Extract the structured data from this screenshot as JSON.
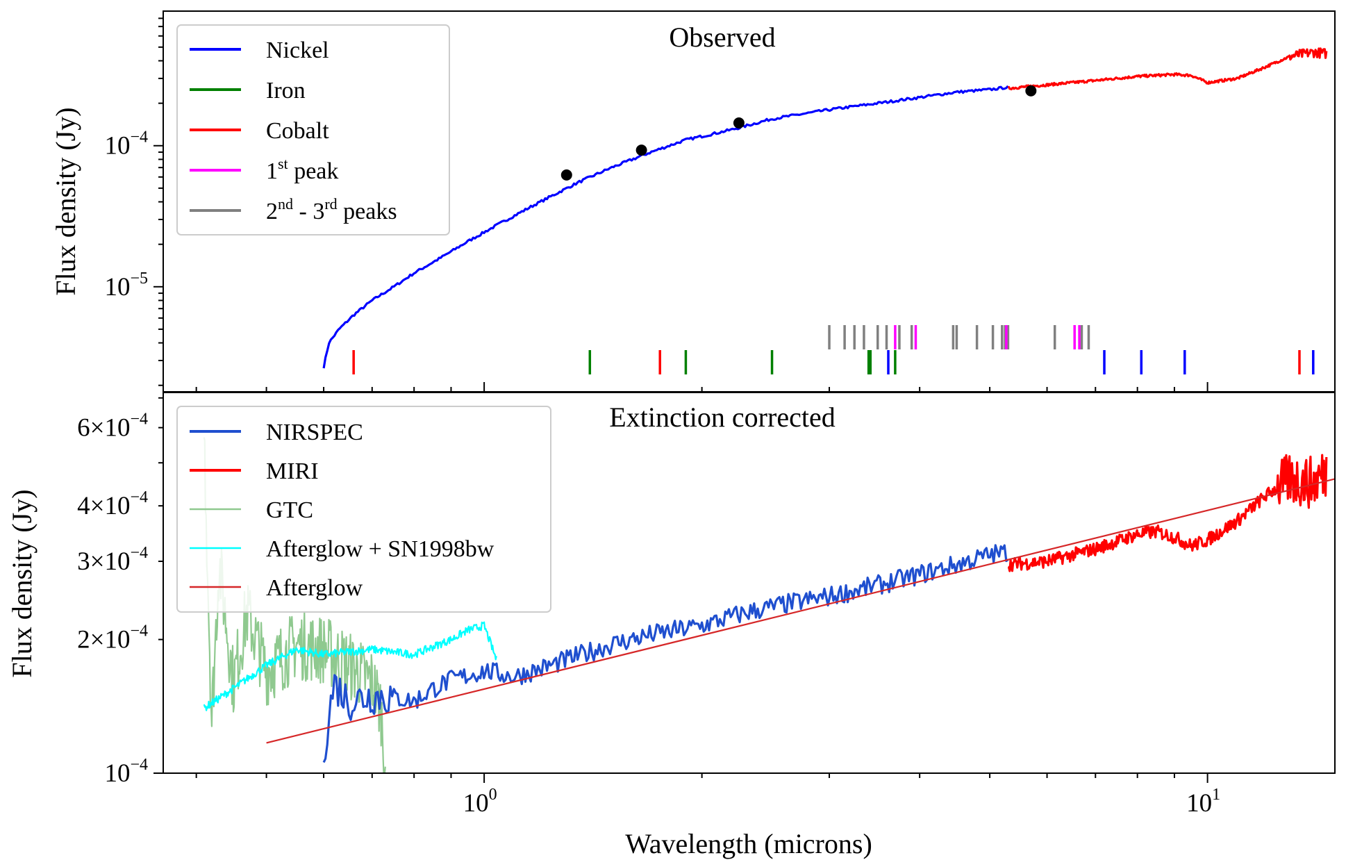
{
  "chart_data": [
    {
      "type": "line",
      "title": "Observed",
      "xlabel": "Wavelength (microns)",
      "ylabel": "Flux density (Jy)",
      "xscale": "log",
      "yscale": "log",
      "xlim": [
        0.36,
        15
      ],
      "ylim": [
        1.8e-06,
        0.0009
      ],
      "yticks": [
        {
          "mant": "10",
          "exp": "−5",
          "value": 1e-05
        },
        {
          "mant": "10",
          "exp": "−4",
          "value": 0.0001
        }
      ],
      "legend": {
        "placement": "upper-left",
        "entries": [
          {
            "label": "Nickel",
            "color": "#0000ff"
          },
          {
            "label": "Iron",
            "color": "#008000"
          },
          {
            "label": "Cobalt",
            "color": "#ff0000"
          },
          {
            "pre": "1",
            "sup": "st",
            "post": " peak",
            "color": "#ff00ff"
          },
          {
            "pre": "2",
            "sup": "nd",
            "mid": " - 3",
            "sup2": "rd",
            "post": " peaks",
            "color": "#808080"
          }
        ]
      },
      "series": [
        {
          "name": "Nickel",
          "color": "#0000ff",
          "x": [
            0.6,
            0.61,
            0.63,
            0.66,
            0.7,
            0.75,
            0.8,
            0.87,
            0.95,
            1.05,
            1.15,
            1.25,
            1.35,
            1.5,
            1.7,
            1.9,
            2.2,
            2.5,
            3.0,
            3.5,
            4.0,
            4.5,
            5.0,
            5.3
          ],
          "y": [
            2.7e-06,
            4e-06,
            5e-06,
            6.3e-06,
            8e-06,
            1e-05,
            1.25e-05,
            1.6e-05,
            2.1e-05,
            2.8e-05,
            3.6e-05,
            4.5e-05,
            5.5e-05,
            7e-05,
            9e-05,
            0.00011,
            0.00013,
            0.000155,
            0.00018,
            0.0002,
            0.00022,
            0.00024,
            0.00025,
            0.00026
          ]
        },
        {
          "name": "Cobalt",
          "color": "#ff0000",
          "x": [
            5.3,
            6.0,
            7.0,
            8.0,
            9.0,
            9.5,
            10.0,
            11.0,
            12.0,
            13.0,
            14.0,
            14.6
          ],
          "y": [
            0.000255,
            0.00027,
            0.00029,
            0.00031,
            0.00032,
            0.000315,
            0.00028,
            0.0003,
            0.00036,
            0.00043,
            0.00046,
            0.00045
          ]
        }
      ],
      "points": {
        "color": "#000000",
        "x": [
          1.3,
          1.65,
          2.25,
          5.7
        ],
        "y": [
          6.2e-05,
          9.3e-05,
          0.000145,
          0.000245
        ]
      },
      "line_markers": {
        "gray": [
          3.0,
          3.15,
          3.25,
          3.35,
          3.5,
          3.6,
          3.75,
          3.9,
          4.45,
          4.5,
          4.8,
          5.05,
          5.2,
          5.25,
          5.3,
          6.15,
          6.7,
          6.85
        ],
        "magenta": [
          3.7,
          3.95,
          5.27,
          6.55,
          6.65
        ],
        "red": [
          0.66,
          1.75,
          13.4
        ],
        "green": [
          1.4,
          1.9,
          2.5,
          3.4,
          3.42,
          3.7
        ],
        "blue": [
          3.62,
          7.2,
          8.1,
          9.3,
          14.0
        ]
      }
    },
    {
      "type": "line",
      "title": "Extinction corrected",
      "xlabel": "Wavelength (microns)",
      "ylabel": "Flux density (Jy)",
      "xscale": "log",
      "yscale": "log",
      "xlim": [
        0.36,
        15
      ],
      "ylim": [
        0.0001,
        0.00072
      ],
      "yticks": [
        {
          "mant": "10",
          "exp": "−4",
          "value": 0.0001
        },
        {
          "mant": "2×10",
          "exp": "−4",
          "value": 0.0002
        },
        {
          "mant": "3×10",
          "exp": "−4",
          "value": 0.0003
        },
        {
          "mant": "4×10",
          "exp": "−4",
          "value": 0.0004
        },
        {
          "mant": "6×10",
          "exp": "−4",
          "value": 0.0006
        }
      ],
      "xticks": [
        {
          "mant": "10",
          "exp": "0",
          "value": 1
        },
        {
          "mant": "10",
          "exp": "1",
          "value": 10
        }
      ],
      "legend": {
        "placement": "upper-left",
        "entries": [
          {
            "label": "NIRSPEC",
            "color": "#1f4fcf"
          },
          {
            "label": "MIRI",
            "color": "#ff0000"
          },
          {
            "label": "GTC",
            "color": "#8fc98f"
          },
          {
            "label": "Afterglow + SN1998bw",
            "color": "#00ffff"
          },
          {
            "label": "Afterglow",
            "color": "#d62728"
          }
        ]
      },
      "series": [
        {
          "name": "NIRSPEC",
          "color": "#1f4fcf",
          "x": [
            0.6,
            0.62,
            0.65,
            0.7,
            0.75,
            0.8,
            0.85,
            0.9,
            1.0,
            1.1,
            1.2,
            1.3,
            1.5,
            1.7,
            2.0,
            2.3,
            2.6,
            3.0,
            3.5,
            4.0,
            4.5,
            5.0,
            5.3
          ],
          "y": [
            0.000112,
            0.00016,
            0.000145,
            0.00015,
            0.000148,
            0.000145,
            0.000155,
            0.000162,
            0.00017,
            0.000165,
            0.000172,
            0.00018,
            0.000195,
            0.000205,
            0.000215,
            0.00023,
            0.00024,
            0.00025,
            0.000265,
            0.00028,
            0.000295,
            0.00031,
            0.000315
          ]
        },
        {
          "name": "MIRI",
          "color": "#ff0000",
          "x": [
            5.3,
            6.0,
            7.0,
            8.0,
            8.5,
            9.0,
            9.5,
            10.0,
            11.0,
            12.0,
            13.0,
            14.0,
            14.6
          ],
          "y": [
            0.000295,
            0.0003,
            0.00032,
            0.000345,
            0.00035,
            0.00034,
            0.000325,
            0.000335,
            0.00037,
            0.00042,
            0.00046,
            0.00045,
            0.00048
          ]
        },
        {
          "name": "GTC",
          "color": "#8fc98f",
          "x": [
            0.41,
            0.42,
            0.43,
            0.45,
            0.47,
            0.5,
            0.55,
            0.6,
            0.65,
            0.7,
            0.72,
            0.73
          ],
          "y": [
            0.0006,
            0.00013,
            0.0003,
            0.00016,
            0.00023,
            0.00017,
            0.000195,
            0.00019,
            0.000175,
            0.00016,
            0.00014,
            0.000105
          ]
        },
        {
          "name": "Afterglow + SN1998bw",
          "color": "#00ffff",
          "x": [
            0.41,
            0.45,
            0.5,
            0.55,
            0.6,
            0.7,
            0.8,
            0.9,
            0.95,
            1.0,
            1.04
          ],
          "y": [
            0.00014,
            0.000155,
            0.000175,
            0.00019,
            0.000185,
            0.00019,
            0.000185,
            0.0002,
            0.00021,
            0.000215,
            0.00018
          ]
        },
        {
          "name": "Afterglow",
          "color": "#d62728",
          "x": [
            0.5,
            15
          ],
          "y": [
            0.000117,
            0.00046
          ]
        }
      ]
    }
  ]
}
